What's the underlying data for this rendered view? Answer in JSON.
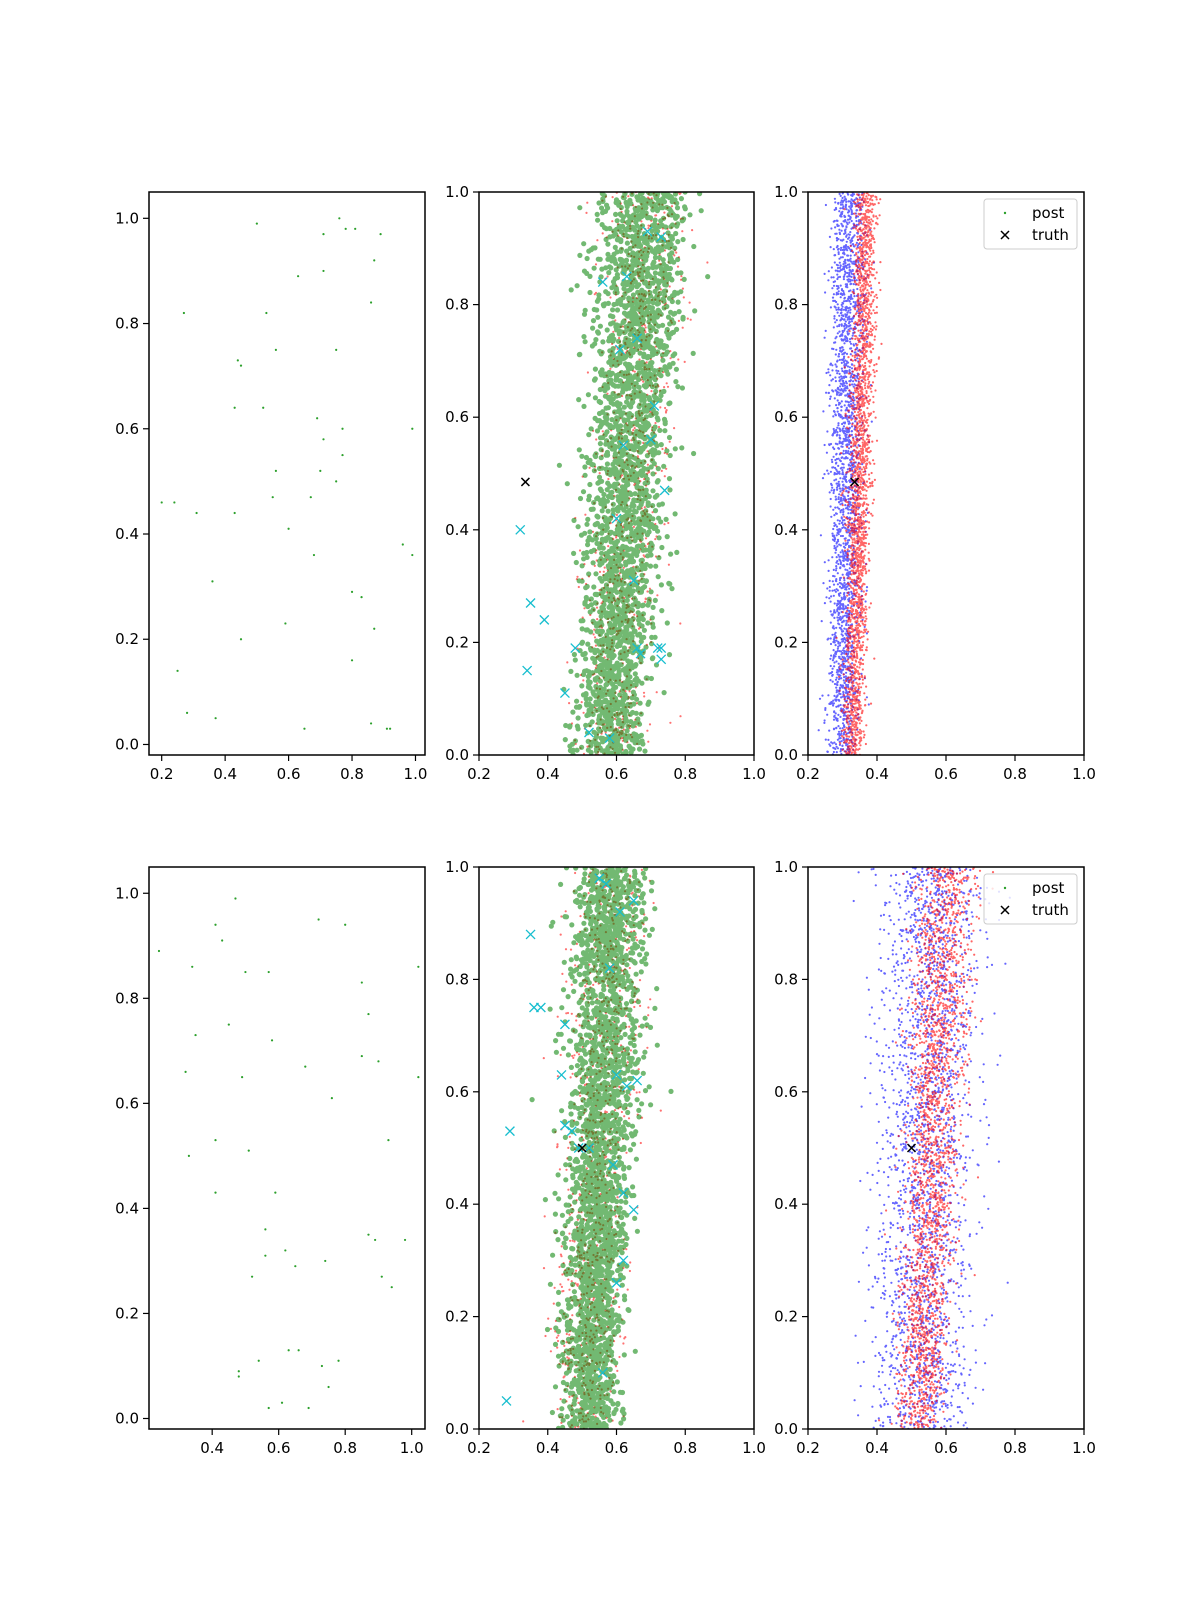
{
  "figure": {
    "background": "#ffffff"
  },
  "colors": {
    "samples_green": "#2ca02c",
    "prior_green": "#008000",
    "cloud_red": "#ff0000",
    "cloud_blue": "#0000ff",
    "marker_cyan": "#17becf",
    "truth_black": "#000000",
    "axes": "#000000"
  },
  "chart_data": [
    {
      "type": "scatter",
      "panel": "row1-col1",
      "xlim": [
        0.16,
        1.03
      ],
      "ylim": [
        -0.02,
        1.05
      ],
      "x_ticks": [
        "0.2",
        "0.4",
        "0.6",
        "0.8",
        "1.0"
      ],
      "x_tick_values": [
        0.2,
        0.4,
        0.6,
        0.8,
        1.0
      ],
      "y_ticks": [
        "0.0",
        "0.2",
        "0.4",
        "0.6",
        "0.8",
        "1.0"
      ],
      "y_tick_values": [
        0.0,
        0.2,
        0.4,
        0.6,
        0.8,
        1.0
      ],
      "series": [
        {
          "kind": "points",
          "color": "samples_green",
          "points": [
            [
              0.5,
              0.99
            ],
            [
              0.76,
              1.0
            ],
            [
              0.78,
              0.98
            ],
            [
              0.81,
              0.98
            ],
            [
              0.89,
              0.97
            ],
            [
              0.71,
              0.97
            ],
            [
              0.87,
              0.92
            ],
            [
              0.63,
              0.89
            ],
            [
              0.71,
              0.9
            ],
            [
              0.27,
              0.82
            ],
            [
              0.53,
              0.82
            ],
            [
              0.86,
              0.84
            ],
            [
              0.56,
              0.75
            ],
            [
              0.75,
              0.75
            ],
            [
              0.44,
              0.73
            ],
            [
              0.45,
              0.72
            ],
            [
              0.43,
              0.64
            ],
            [
              0.52,
              0.64
            ],
            [
              0.69,
              0.62
            ],
            [
              0.77,
              0.6
            ],
            [
              0.99,
              0.6
            ],
            [
              0.71,
              0.58
            ],
            [
              0.77,
              0.55
            ],
            [
              0.56,
              0.52
            ],
            [
              0.7,
              0.52
            ],
            [
              0.75,
              0.5
            ],
            [
              0.2,
              0.46
            ],
            [
              0.24,
              0.46
            ],
            [
              0.55,
              0.47
            ],
            [
              0.67,
              0.47
            ],
            [
              0.31,
              0.44
            ],
            [
              0.43,
              0.44
            ],
            [
              0.6,
              0.41
            ],
            [
              0.96,
              0.38
            ],
            [
              0.68,
              0.36
            ],
            [
              0.99,
              0.36
            ],
            [
              0.36,
              0.31
            ],
            [
              0.8,
              0.29
            ],
            [
              0.83,
              0.28
            ],
            [
              0.59,
              0.23
            ],
            [
              0.87,
              0.22
            ],
            [
              0.45,
              0.2
            ],
            [
              0.8,
              0.16
            ],
            [
              0.25,
              0.14
            ],
            [
              0.28,
              0.06
            ],
            [
              0.37,
              0.05
            ],
            [
              0.65,
              0.03
            ],
            [
              0.86,
              0.04
            ],
            [
              0.91,
              0.03
            ],
            [
              0.92,
              0.03
            ]
          ]
        }
      ]
    },
    {
      "type": "scatter",
      "panel": "row1-col2",
      "xlim": [
        0.2,
        1.0
      ],
      "ylim": [
        0.0,
        1.0
      ],
      "x_ticks": [
        "0.2",
        "0.4",
        "0.6",
        "0.8",
        "1.0"
      ],
      "x_tick_values": [
        0.2,
        0.4,
        0.6,
        0.8,
        1.0
      ],
      "y_ticks": [
        "0.0",
        "0.2",
        "0.4",
        "0.6",
        "0.8",
        "1.0"
      ],
      "y_tick_values": [
        0.0,
        0.2,
        0.4,
        0.6,
        0.8,
        1.0
      ],
      "series": [
        {
          "kind": "cloud",
          "color": "cloud_red",
          "count": 900,
          "center_bottom": 0.58,
          "center_top": 0.7,
          "spread_bottom": 0.11,
          "spread_top": 0.13,
          "size": 1.1,
          "opacity": 0.55,
          "seed": 11
        },
        {
          "kind": "cloud",
          "color": "prior_green",
          "count": 2600,
          "center_bottom": 0.58,
          "center_top": 0.68,
          "spread_bottom": 0.1,
          "spread_top": 0.13,
          "size": 2.6,
          "opacity": 0.55,
          "seed": 12
        },
        {
          "kind": "crosses",
          "color": "marker_cyan",
          "points": [
            [
              0.32,
              0.4
            ],
            [
              0.34,
              0.15
            ],
            [
              0.35,
              0.27
            ],
            [
              0.39,
              0.24
            ],
            [
              0.45,
              0.11
            ],
            [
              0.48,
              0.19
            ],
            [
              0.52,
              0.04
            ],
            [
              0.58,
              0.03
            ],
            [
              0.62,
              0.55
            ],
            [
              0.66,
              0.19
            ],
            [
              0.67,
              0.18
            ],
            [
              0.72,
              0.19
            ],
            [
              0.73,
              0.19
            ],
            [
              0.73,
              0.17
            ],
            [
              0.74,
              0.47
            ],
            [
              0.71,
              0.62
            ],
            [
              0.7,
              0.56
            ],
            [
              0.63,
              0.85
            ],
            [
              0.69,
              0.93
            ],
            [
              0.73,
              0.92
            ],
            [
              0.56,
              0.84
            ],
            [
              0.66,
              0.74
            ],
            [
              0.61,
              0.72
            ],
            [
              0.6,
              0.42
            ],
            [
              0.65,
              0.31
            ]
          ]
        },
        {
          "kind": "crosses",
          "color": "truth_black",
          "points": [
            [
              0.335,
              0.485
            ]
          ]
        }
      ]
    },
    {
      "type": "scatter",
      "panel": "row1-col3",
      "xlim": [
        0.2,
        1.0
      ],
      "ylim": [
        0.0,
        1.0
      ],
      "x_ticks": [
        "0.2",
        "0.4",
        "0.6",
        "0.8",
        "1.0"
      ],
      "x_tick_values": [
        0.2,
        0.4,
        0.6,
        0.8,
        1.0
      ],
      "y_ticks": [
        "0.0",
        "0.2",
        "0.4",
        "0.6",
        "0.8",
        "1.0"
      ],
      "y_tick_values": [
        0.0,
        0.2,
        0.4,
        0.6,
        0.8,
        1.0
      ],
      "legend": {
        "placement": "top-right",
        "entries": [
          {
            "label": "post",
            "marker": "dot",
            "color": "samples_green"
          },
          {
            "label": "truth",
            "marker": "cross",
            "color": "truth_black"
          }
        ]
      },
      "series": [
        {
          "kind": "cloud",
          "color": "cloud_blue",
          "count": 2200,
          "center_bottom": 0.3,
          "center_top": 0.32,
          "spread_bottom": 0.045,
          "spread_top": 0.05,
          "size": 1.1,
          "opacity": 0.6,
          "seed": 21
        },
        {
          "kind": "cloud",
          "color": "cloud_red",
          "count": 2200,
          "center_bottom": 0.33,
          "center_top": 0.37,
          "spread_bottom": 0.03,
          "spread_top": 0.035,
          "size": 1.1,
          "opacity": 0.6,
          "seed": 22
        },
        {
          "kind": "crosses",
          "color": "truth_black",
          "points": [
            [
              0.335,
              0.485
            ]
          ]
        }
      ]
    },
    {
      "type": "scatter",
      "panel": "row2-col1",
      "xlim": [
        0.21,
        1.04
      ],
      "ylim": [
        -0.02,
        1.05
      ],
      "x_ticks": [
        "0.4",
        "0.6",
        "0.8",
        "1.0"
      ],
      "x_tick_values": [
        0.4,
        0.6,
        0.8,
        1.0
      ],
      "y_ticks": [
        "0.0",
        "0.2",
        "0.4",
        "0.6",
        "0.8",
        "1.0"
      ],
      "y_tick_values": [
        0.0,
        0.2,
        0.4,
        0.6,
        0.8,
        1.0
      ],
      "series": [
        {
          "kind": "points",
          "color": "samples_green",
          "points": [
            [
              0.47,
              0.99
            ],
            [
              0.24,
              0.89
            ],
            [
              0.41,
              0.94
            ],
            [
              0.43,
              0.91
            ],
            [
              0.72,
              0.95
            ],
            [
              0.8,
              0.94
            ],
            [
              0.34,
              0.86
            ],
            [
              0.5,
              0.85
            ],
            [
              0.57,
              0.85
            ],
            [
              1.02,
              0.86
            ],
            [
              0.85,
              0.83
            ],
            [
              0.87,
              0.77
            ],
            [
              0.45,
              0.75
            ],
            [
              0.35,
              0.73
            ],
            [
              0.58,
              0.72
            ],
            [
              0.68,
              0.67
            ],
            [
              0.32,
              0.66
            ],
            [
              0.85,
              0.69
            ],
            [
              0.9,
              0.68
            ],
            [
              1.02,
              0.65
            ],
            [
              0.49,
              0.65
            ],
            [
              0.76,
              0.61
            ],
            [
              0.41,
              0.53
            ],
            [
              0.51,
              0.51
            ],
            [
              0.33,
              0.5
            ],
            [
              0.93,
              0.53
            ],
            [
              0.41,
              0.43
            ],
            [
              0.59,
              0.43
            ],
            [
              0.56,
              0.36
            ],
            [
              0.87,
              0.35
            ],
            [
              0.89,
              0.34
            ],
            [
              0.98,
              0.34
            ],
            [
              0.62,
              0.32
            ],
            [
              0.56,
              0.31
            ],
            [
              0.65,
              0.29
            ],
            [
              0.74,
              0.3
            ],
            [
              0.52,
              0.27
            ],
            [
              0.91,
              0.27
            ],
            [
              0.94,
              0.25
            ],
            [
              0.63,
              0.13
            ],
            [
              0.66,
              0.13
            ],
            [
              0.54,
              0.11
            ],
            [
              0.73,
              0.1
            ],
            [
              0.78,
              0.11
            ],
            [
              0.48,
              0.09
            ],
            [
              0.48,
              0.08
            ],
            [
              0.75,
              0.06
            ],
            [
              0.61,
              0.03
            ],
            [
              0.57,
              0.02
            ],
            [
              0.69,
              0.02
            ]
          ]
        }
      ]
    },
    {
      "type": "scatter",
      "panel": "row2-col2",
      "xlim": [
        0.2,
        1.0
      ],
      "ylim": [
        0.0,
        1.0
      ],
      "x_ticks": [
        "0.2",
        "0.4",
        "0.6",
        "0.8",
        "1.0"
      ],
      "x_tick_values": [
        0.2,
        0.4,
        0.6,
        0.8,
        1.0
      ],
      "y_ticks": [
        "0.0",
        "0.2",
        "0.4",
        "0.6",
        "0.8",
        "1.0"
      ],
      "y_tick_values": [
        0.0,
        0.2,
        0.4,
        0.6,
        0.8,
        1.0
      ],
      "series": [
        {
          "kind": "cloud",
          "color": "cloud_red",
          "count": 900,
          "center_bottom": 0.5,
          "center_top": 0.59,
          "spread_bottom": 0.1,
          "spread_top": 0.12,
          "size": 1.1,
          "opacity": 0.55,
          "seed": 31
        },
        {
          "kind": "cloud",
          "color": "prior_green",
          "count": 2600,
          "center_bottom": 0.52,
          "center_top": 0.58,
          "spread_bottom": 0.08,
          "spread_top": 0.11,
          "size": 2.6,
          "opacity": 0.55,
          "seed": 32
        },
        {
          "kind": "crosses",
          "color": "marker_cyan",
          "points": [
            [
              0.29,
              0.53
            ],
            [
              0.28,
              0.05
            ],
            [
              0.35,
              0.88
            ],
            [
              0.36,
              0.75
            ],
            [
              0.38,
              0.75
            ],
            [
              0.44,
              0.63
            ],
            [
              0.45,
              0.72
            ],
            [
              0.45,
              0.54
            ],
            [
              0.47,
              0.53
            ],
            [
              0.49,
              0.5
            ],
            [
              0.52,
              0.5
            ],
            [
              0.55,
              0.98
            ],
            [
              0.57,
              0.97
            ],
            [
              0.58,
              0.82
            ],
            [
              0.6,
              0.63
            ],
            [
              0.61,
              0.92
            ],
            [
              0.62,
              0.42
            ],
            [
              0.63,
              0.61
            ],
            [
              0.65,
              0.94
            ],
            [
              0.65,
              0.39
            ],
            [
              0.66,
              0.62
            ],
            [
              0.6,
              0.26
            ],
            [
              0.62,
              0.3
            ],
            [
              0.56,
              0.1
            ],
            [
              0.59,
              0.47
            ]
          ]
        },
        {
          "kind": "crosses",
          "color": "truth_black",
          "points": [
            [
              0.5,
              0.5
            ]
          ]
        }
      ]
    },
    {
      "type": "scatter",
      "panel": "row2-col3",
      "xlim": [
        0.2,
        1.0
      ],
      "ylim": [
        0.0,
        1.0
      ],
      "x_ticks": [
        "0.2",
        "0.4",
        "0.6",
        "0.8",
        "1.0"
      ],
      "x_tick_values": [
        0.2,
        0.4,
        0.6,
        0.8,
        1.0
      ],
      "y_ticks": [
        "0.0",
        "0.2",
        "0.4",
        "0.6",
        "0.8",
        "1.0"
      ],
      "y_tick_values": [
        0.0,
        0.2,
        0.4,
        0.6,
        0.8,
        1.0
      ],
      "legend": {
        "placement": "top-right",
        "entries": [
          {
            "label": "post",
            "marker": "dot",
            "color": "samples_green"
          },
          {
            "label": "truth",
            "marker": "cross",
            "color": "truth_black"
          }
        ]
      },
      "series": [
        {
          "kind": "cloud",
          "color": "cloud_blue",
          "count": 2300,
          "center_bottom": 0.52,
          "center_top": 0.56,
          "spread_bottom": 0.14,
          "spread_top": 0.14,
          "size": 1.1,
          "opacity": 0.6,
          "seed": 41
        },
        {
          "kind": "cloud",
          "color": "cloud_red",
          "count": 2300,
          "center_bottom": 0.52,
          "center_top": 0.6,
          "spread_bottom": 0.07,
          "spread_top": 0.09,
          "size": 1.1,
          "opacity": 0.6,
          "seed": 42
        },
        {
          "kind": "crosses",
          "color": "truth_black",
          "points": [
            [
              0.5,
              0.5
            ]
          ]
        }
      ]
    }
  ]
}
